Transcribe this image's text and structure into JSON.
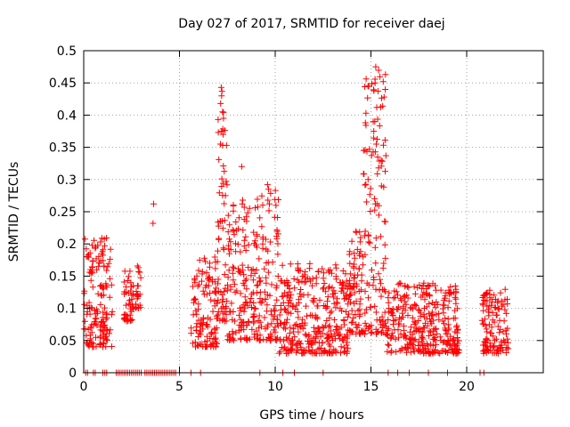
{
  "chart_data": {
    "type": "scatter",
    "title": "Day 027 of 2017, SRMTID for receiver daej",
    "xlabel": "GPS time / hours",
    "ylabel": "SRMTID / TECUs",
    "xlim": [
      0,
      24
    ],
    "ylim": [
      0,
      0.5
    ],
    "x_ticks": [
      0,
      5,
      10,
      15,
      20
    ],
    "y_ticks": [
      0,
      0.05,
      0.1,
      0.15,
      0.2,
      0.25,
      0.3,
      0.35,
      0.4,
      0.45,
      0.5
    ],
    "x_tick_labels": [
      "0",
      "5",
      "10",
      "15",
      "20"
    ],
    "y_tick_labels": [
      "0",
      "0.05",
      "0.1",
      "0.15",
      "0.2",
      "0.25",
      "0.3",
      "0.35",
      "0.4",
      "0.45",
      "0.5"
    ],
    "grid": true,
    "marker": "+",
    "color": "#ff0000",
    "segments": [
      {
        "x_start": 0.0,
        "x_end": 1.5,
        "y_min": 0.04,
        "y_max": 0.21,
        "count": 150
      },
      {
        "x_start": 2.1,
        "x_end": 2.6,
        "y_min": 0.08,
        "y_max": 0.16,
        "count": 45
      },
      {
        "x_start": 2.7,
        "x_end": 3.0,
        "y_min": 0.1,
        "y_max": 0.17,
        "count": 20
      },
      {
        "x_start": 5.6,
        "x_end": 7.0,
        "y_min": 0.04,
        "y_max": 0.18,
        "count": 120
      },
      {
        "x_start": 7.0,
        "x_end": 7.5,
        "y_min": 0.08,
        "y_max": 0.44,
        "count": 60
      },
      {
        "x_start": 7.5,
        "x_end": 9.0,
        "y_min": 0.05,
        "y_max": 0.27,
        "count": 140
      },
      {
        "x_start": 9.0,
        "x_end": 10.2,
        "y_min": 0.05,
        "y_max": 0.29,
        "count": 110
      },
      {
        "x_start": 10.2,
        "x_end": 13.8,
        "y_min": 0.03,
        "y_max": 0.17,
        "count": 330
      },
      {
        "x_start": 13.8,
        "x_end": 14.6,
        "y_min": 0.06,
        "y_max": 0.22,
        "count": 80
      },
      {
        "x_start": 14.6,
        "x_end": 15.8,
        "y_min": 0.06,
        "y_max": 0.47,
        "count": 130
      },
      {
        "x_start": 15.8,
        "x_end": 19.6,
        "y_min": 0.03,
        "y_max": 0.14,
        "count": 320
      },
      {
        "x_start": 20.8,
        "x_end": 22.2,
        "y_min": 0.03,
        "y_max": 0.13,
        "count": 120
      }
    ],
    "outliers": [
      {
        "x": 3.65,
        "y": 0.262
      },
      {
        "x": 3.62,
        "y": 0.232
      },
      {
        "x": 7.18,
        "y": 0.443
      },
      {
        "x": 7.22,
        "y": 0.437
      },
      {
        "x": 7.2,
        "y": 0.43
      },
      {
        "x": 7.15,
        "y": 0.418
      },
      {
        "x": 7.25,
        "y": 0.405
      },
      {
        "x": 7.3,
        "y": 0.395
      },
      {
        "x": 7.2,
        "y": 0.375
      },
      {
        "x": 7.28,
        "y": 0.37
      },
      {
        "x": 8.25,
        "y": 0.32
      },
      {
        "x": 7.4,
        "y": 0.275
      },
      {
        "x": 8.3,
        "y": 0.268
      },
      {
        "x": 8.28,
        "y": 0.262
      },
      {
        "x": 9.6,
        "y": 0.292
      },
      {
        "x": 9.65,
        "y": 0.285
      },
      {
        "x": 9.62,
        "y": 0.268
      },
      {
        "x": 9.7,
        "y": 0.262
      },
      {
        "x": 15.25,
        "y": 0.475
      },
      {
        "x": 15.22,
        "y": 0.45
      },
      {
        "x": 15.3,
        "y": 0.412
      },
      {
        "x": 15.2,
        "y": 0.39
      },
      {
        "x": 15.15,
        "y": 0.375
      },
      {
        "x": 15.28,
        "y": 0.355
      },
      {
        "x": 15.35,
        "y": 0.335
      },
      {
        "x": 15.4,
        "y": 0.318
      },
      {
        "x": 14.85,
        "y": 0.3
      },
      {
        "x": 15.55,
        "y": 0.29
      }
    ],
    "zero_points_x": [
      0.1,
      0.2,
      0.5,
      0.6,
      1.0,
      1.1,
      1.2,
      1.7,
      1.8,
      1.9,
      2.0,
      2.1,
      2.2,
      2.3,
      2.4,
      2.5,
      2.6,
      2.7,
      2.8,
      2.9,
      3.0,
      3.2,
      3.3,
      3.4,
      3.5,
      3.6,
      3.7,
      3.8,
      3.9,
      4.0,
      4.1,
      4.2,
      4.3,
      4.4,
      4.5,
      4.6,
      4.7,
      4.8,
      5.0,
      5.6,
      6.1,
      9.2,
      10.4,
      11.0,
      12.5,
      15.9,
      16.4,
      17.0,
      18.0,
      19.0,
      20.7,
      20.9
    ]
  }
}
